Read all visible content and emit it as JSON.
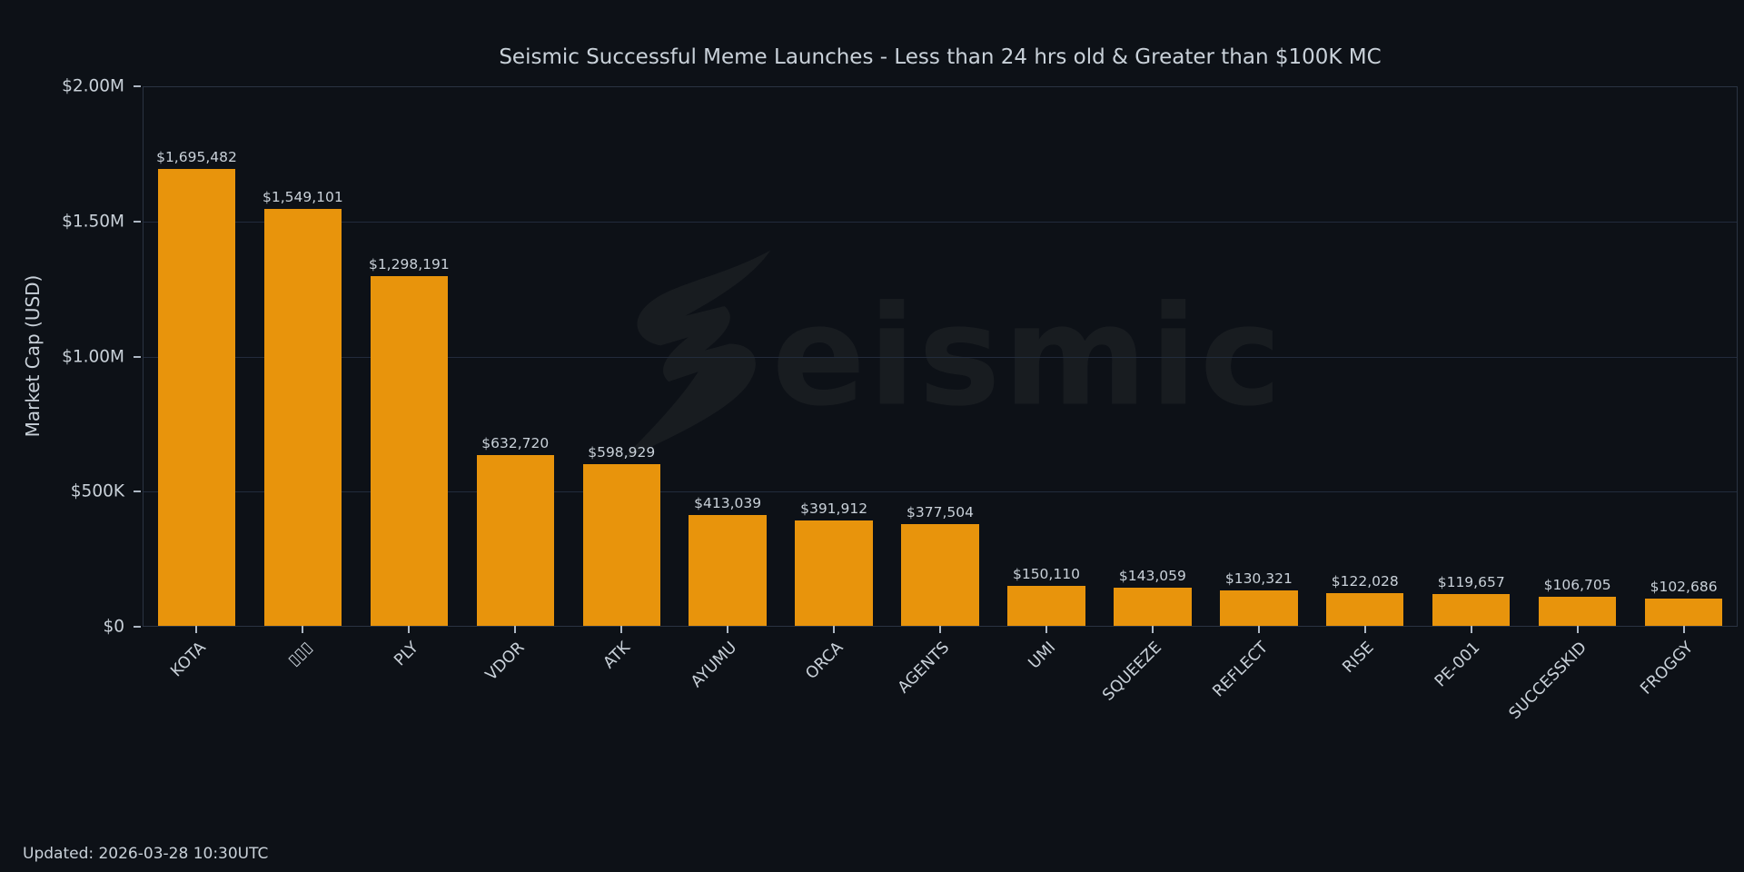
{
  "updated": "Updated: 2026-03-28 10:30UTC",
  "watermark": {
    "text": "eismic"
  },
  "colors": {
    "background": "#0d1117",
    "bar": "#e8940c",
    "text": "#c9d1d9",
    "grid": "#222b3c",
    "spine": "#2a3342",
    "tick": "#aeb8c4"
  },
  "chart_data": {
    "type": "bar",
    "title": "Seismic Successful Meme Launches - Less than 24 hrs old & Greater than $100K MC",
    "xlabel": "",
    "ylabel": "Market Cap (USD)",
    "ylim": [
      0,
      2000000
    ],
    "grid": "horizontal",
    "legend": "none",
    "categories": [
      "KOTA",
      "▯▯▯",
      "PLY",
      "VDOR",
      "ATK",
      "AYUMU",
      "ORCA",
      "AGENTS",
      "UMI",
      "SQUEEZE",
      "REFLECT",
      "RISE",
      "PE-001",
      "SUCCESSKID",
      "FROGGY"
    ],
    "values": [
      1695482,
      1549101,
      1298191,
      632720,
      598929,
      413039,
      391912,
      377504,
      150110,
      143059,
      130321,
      122028,
      119657,
      106705,
      102686
    ],
    "value_labels": [
      "$1,695,482",
      "$1,549,101",
      "$1,298,191",
      "$632,720",
      "$598,929",
      "$413,039",
      "$391,912",
      "$377,504",
      "$150,110",
      "$143,059",
      "$130,321",
      "$122,028",
      "$119,657",
      "$106,705",
      "$102,686"
    ],
    "yticks": [
      {
        "label": "$2.00M",
        "value": 2000000
      },
      {
        "label": "$1.50M",
        "value": 1500000
      },
      {
        "label": "$1.00M",
        "value": 1000000
      },
      {
        "label": "$500K",
        "value": 500000
      },
      {
        "label": "$0",
        "value": 0
      }
    ]
  }
}
